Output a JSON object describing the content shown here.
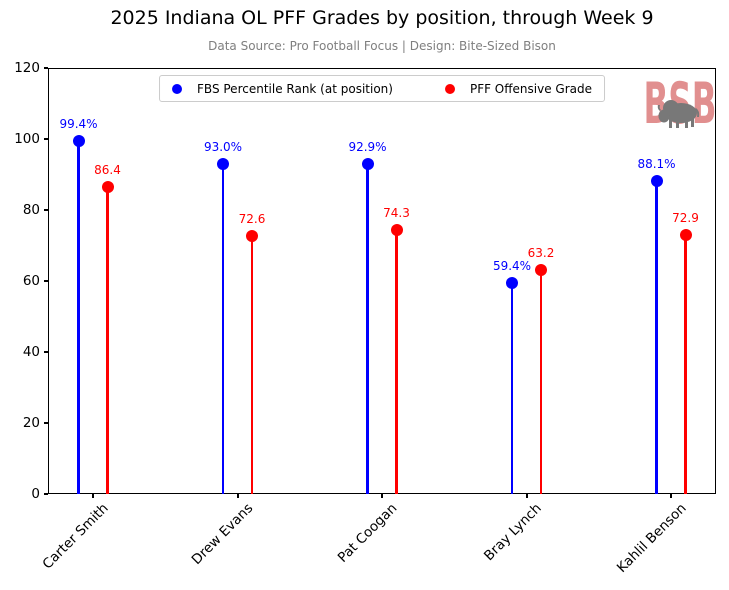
{
  "chart_data": {
    "type": "stem",
    "title": "2025 Indiana OL PFF Grades by position, through Week 9",
    "subtitle": "Data Source: Pro Football Focus | Design: Bite-Sized Bison",
    "categories": [
      "Carter Smith",
      "Drew Evans",
      "Pat Coogan",
      "Bray Lynch",
      "Kahlil Benson"
    ],
    "series": [
      {
        "name": "FBS Percentile Rank (at position)",
        "color": "#0000ff",
        "values": [
          99.4,
          93.0,
          92.9,
          59.4,
          88.1
        ],
        "labels": [
          "99.4%",
          "93.0%",
          "92.9%",
          "59.4%",
          "88.1%"
        ]
      },
      {
        "name": "PFF Offensive Grade",
        "color": "#ff0000",
        "values": [
          86.4,
          72.6,
          74.3,
          63.2,
          72.9
        ],
        "labels": [
          "86.4",
          "72.6",
          "74.3",
          "63.2",
          "72.9"
        ]
      }
    ],
    "ylim": [
      0,
      120
    ],
    "yticks": [
      0,
      20,
      40,
      60,
      80,
      100,
      120
    ],
    "grid": false,
    "legend_position": "upper center",
    "subtitle_color": "#7f7f7f",
    "axis_color": "#000000"
  },
  "logo": {
    "text": "BSB",
    "letter_color": "#e18f8f",
    "bison_color": "#787878"
  }
}
